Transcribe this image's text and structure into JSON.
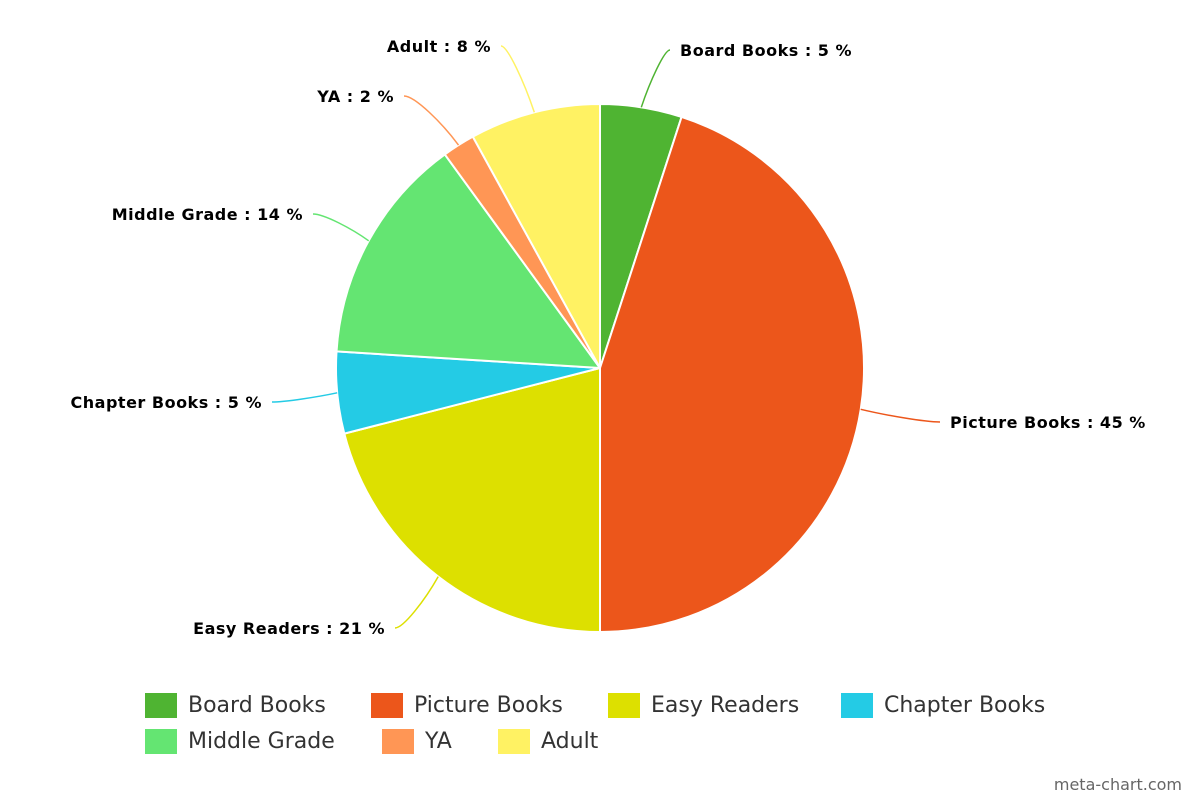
{
  "chart_data": {
    "type": "pie",
    "title": "",
    "label_format": "{name} : {value} %",
    "slices": [
      {
        "name": "Board Books",
        "value": 5,
        "color": "#4fb432"
      },
      {
        "name": "Picture Books",
        "value": 45,
        "color": "#ec561b"
      },
      {
        "name": "Easy Readers",
        "value": 21,
        "color": "#dde000"
      },
      {
        "name": "Chapter Books",
        "value": 5,
        "color": "#24cbe5"
      },
      {
        "name": "Middle Grade",
        "value": 14,
        "color": "#64e572"
      },
      {
        "name": "YA",
        "value": 2,
        "color": "#ff9655"
      },
      {
        "name": "Adult",
        "value": 8,
        "color": "#fff263"
      }
    ],
    "legend_placement": "bottom"
  },
  "watermark": "meta-chart.com"
}
